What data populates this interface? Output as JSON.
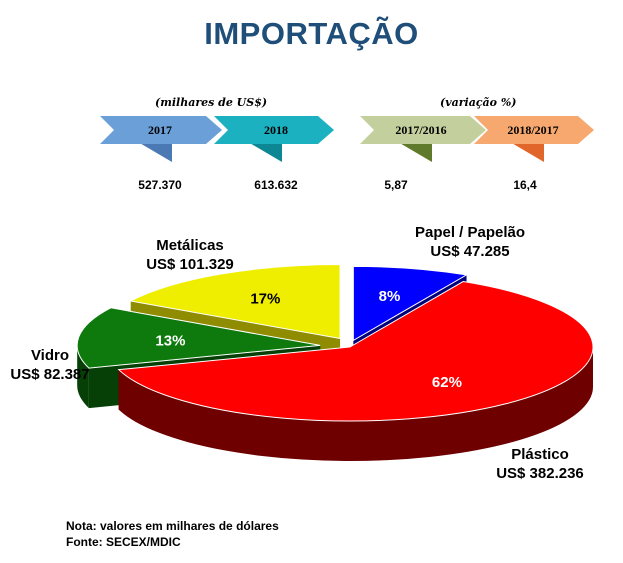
{
  "title": "IMPORTAÇÃO",
  "captions": {
    "values": "(milhares de US$)",
    "variation": "(variação %)"
  },
  "badges": [
    {
      "label": "2017",
      "value": "527.370",
      "color": "#6a9fd8",
      "shadow": "#4a79b3"
    },
    {
      "label": "2018",
      "value": "613.632",
      "color": "#1bb1c0",
      "shadow": "#0e8794"
    },
    {
      "label": "2017/2016",
      "value": "5,87",
      "color": "#c3cf9d",
      "shadow": "#5f7a2a"
    },
    {
      "label": "2018/2017",
      "value": "16,4",
      "color": "#f6a86f",
      "shadow": "#e1662a"
    }
  ],
  "chart_data": {
    "type": "pie",
    "slices": [
      {
        "name": "Papel / Papelão",
        "value_text": "US$ 47.285",
        "value": 47.285,
        "percent": 8,
        "percent_label": "8%",
        "color": "#0000ff",
        "side": "#00007a"
      },
      {
        "name": "Plástico",
        "value_text": "US$ 382.236",
        "value": 382.236,
        "percent": 62,
        "percent_label": "62%",
        "color": "#ff0000",
        "side": "#6e0000"
      },
      {
        "name": "Vidro",
        "value_text": "US$ 82.387",
        "value": 82.387,
        "percent": 13,
        "percent_label": "13%",
        "color": "#0e7a0e",
        "side": "#064006"
      },
      {
        "name": "Metálicas",
        "value_text": "US$ 101.329",
        "value": 101.329,
        "percent": 17,
        "percent_label": "17%",
        "color": "#f0ee00",
        "side": "#8f8c00"
      }
    ]
  },
  "note": {
    "line1": "Nota: valores em milhares de dólares",
    "line2": "Fonte: SECEX/MDIC"
  }
}
